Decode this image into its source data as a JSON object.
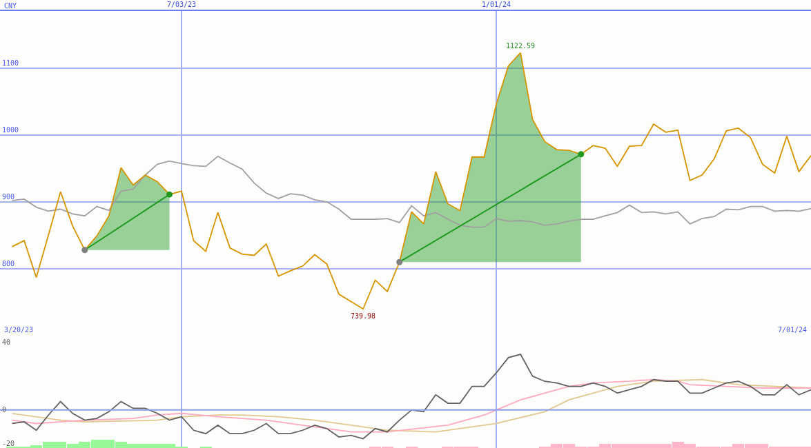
{
  "chart_data": [
    {
      "type": "line",
      "ylabel": "CNY",
      "x": [
        "2023-03-27",
        "2023-04-03",
        "2023-04-10",
        "2023-04-17",
        "2023-04-24",
        "2023-05-01",
        "2023-05-08",
        "2023-05-15",
        "2023-05-22",
        "2023-05-29",
        "2023-06-05",
        "2023-06-12",
        "2023-06-19",
        "2023-06-26",
        "2023-07-03",
        "2023-07-10",
        "2023-07-17",
        "2023-07-24",
        "2023-07-31",
        "2023-08-07",
        "2023-08-14",
        "2023-08-21",
        "2023-08-28",
        "2023-09-04",
        "2023-09-11",
        "2023-09-18",
        "2023-09-25",
        "2023-10-02",
        "2023-10-09",
        "2023-10-16",
        "2023-10-23",
        "2023-10-30",
        "2023-11-06",
        "2023-11-13",
        "2023-11-20",
        "2023-11-27",
        "2023-12-04",
        "2023-12-11",
        "2023-12-18",
        "2023-12-25",
        "2024-01-01",
        "2024-01-08",
        "2024-01-15",
        "2024-01-22",
        "2024-01-29",
        "2024-02-05",
        "2024-02-12",
        "2024-02-19",
        "2024-02-26",
        "2024-03-04",
        "2024-03-11",
        "2024-03-18",
        "2024-03-25",
        "2024-04-01",
        "2024-04-08",
        "2024-04-15",
        "2024-04-22",
        "2024-04-29",
        "2024-05-06",
        "2024-05-13",
        "2024-05-20",
        "2024-05-27",
        "2024-06-03",
        "2024-06-10",
        "2024-06-17",
        "2024-06-24",
        "2024-07-01"
      ],
      "series": [
        {
          "color": "#a0a0a0",
          "values": [
            902,
            904,
            892,
            886,
            889,
            882,
            879,
            893,
            887,
            916,
            919,
            940,
            956,
            961,
            957,
            954,
            953,
            968,
            958,
            949,
            928,
            913,
            905,
            912,
            910,
            903,
            900,
            889,
            874,
            874,
            874,
            875,
            869,
            894,
            879,
            884,
            874,
            865,
            862,
            862,
            875,
            871,
            872,
            870,
            865,
            867,
            871,
            874,
            874,
            879,
            884,
            895,
            884,
            885,
            882,
            885,
            867,
            875,
            878,
            889,
            888,
            893,
            893,
            886,
            887,
            886,
            890
          ]
        },
        {
          "color": "#d89400",
          "values": [
            833,
            842,
            787,
            850,
            915,
            864,
            828,
            849,
            879,
            951,
            925,
            940,
            930,
            911,
            916,
            842,
            826,
            884,
            831,
            822,
            820,
            837,
            789,
            797,
            804,
            821,
            807,
            762,
            751,
            739.98,
            783,
            766,
            810,
            885,
            867,
            945,
            897,
            887,
            967,
            967,
            1046,
            1103,
            1122.59,
            1023,
            990,
            978,
            977,
            971,
            984,
            980,
            953,
            983,
            984,
            1016,
            1004,
            1007,
            932,
            940,
            964,
            1006,
            1010,
            996,
            956,
            943,
            998,
            945,
            969
          ]
        },
        {
          "type": "line",
          "color": "#1f9a1f",
          "marker": "circle",
          "x": [
            "2023-05-08",
            "2023-05-15",
            "2023-05-22",
            "2023-05-29",
            "2023-06-05",
            "2023-06-12",
            "2023-06-19",
            "2023-06-26"
          ],
          "values": [
            828,
            null,
            null,
            null,
            null,
            null,
            null,
            911
          ],
          "colors": [
            "#808080",
            null,
            null,
            null,
            null,
            null,
            null,
            "#1f9a1f"
          ],
          "lower": [
            828,
            828,
            828,
            828,
            828,
            828,
            828,
            828
          ],
          "upper": [
            828,
            849,
            879,
            951,
            925,
            940,
            930,
            911
          ]
        },
        {
          "type": "line",
          "color": "#1f9a1f",
          "marker": "circle",
          "x": [
            "2023-11-06",
            "2023-11-13",
            "2023-11-20",
            "2023-11-27",
            "2023-12-04",
            "2023-12-11",
            "2023-12-18",
            "2023-12-25",
            "2024-01-01",
            "2024-01-08",
            "2024-01-15",
            "2024-01-22",
            "2024-01-29",
            "2024-02-05",
            "2024-02-12",
            "2024-02-19"
          ],
          "values": [
            810,
            null,
            null,
            null,
            null,
            null,
            null,
            null,
            null,
            null,
            null,
            null,
            null,
            null,
            null,
            971
          ],
          "colors": [
            "#808080",
            null,
            null,
            null,
            null,
            null,
            null,
            null,
            null,
            null,
            null,
            null,
            null,
            null,
            null,
            "#1f9a1f"
          ],
          "lower": [
            810,
            810,
            810,
            810,
            810,
            810,
            810,
            810,
            810,
            810,
            810,
            810,
            810,
            810,
            810,
            810
          ],
          "upper": [
            810,
            885,
            867,
            945,
            897,
            887,
            967,
            967,
            1046,
            1103,
            1122.59,
            1023,
            990,
            978,
            977,
            971
          ]
        }
      ],
      "xlim": [
        "2023-03-20",
        "2024-07-01"
      ],
      "xticks": [
        {
          "value": "2023-07-03",
          "label": "7/03/23"
        },
        {
          "value": "2024-01-01",
          "label": "1/01/24"
        }
      ],
      "ylim": [
        700,
        1185
      ],
      "yticks": [
        800,
        900,
        1000,
        1100
      ],
      "grid": true,
      "annotations": [
        "3/20/23",
        "7/01/24",
        {
          "text": "1122.59",
          "x": "2024-01-15",
          "y": 1122.59
        },
        {
          "text": "739.98",
          "x": "2023-10-16",
          "y": 739.98
        }
      ]
    },
    {
      "type": "line",
      "x": [
        "2023-03-27",
        "2023-04-03",
        "2023-04-10",
        "2023-04-17",
        "2023-04-24",
        "2023-05-01",
        "2023-05-08",
        "2023-05-15",
        "2023-05-22",
        "2023-05-29",
        "2023-06-05",
        "2023-06-12",
        "2023-06-19",
        "2023-06-26",
        "2023-07-03",
        "2023-07-10",
        "2023-07-17",
        "2023-07-24",
        "2023-07-31",
        "2023-08-07",
        "2023-08-14",
        "2023-08-21",
        "2023-08-28",
        "2023-09-04",
        "2023-09-11",
        "2023-09-18",
        "2023-09-25",
        "2023-10-02",
        "2023-10-09",
        "2023-10-16",
        "2023-10-23",
        "2023-10-30",
        "2023-11-06",
        "2023-11-13",
        "2023-11-20",
        "2023-11-27",
        "2023-12-04",
        "2023-12-11",
        "2023-12-18",
        "2023-12-25",
        "2024-01-01",
        "2024-01-08",
        "2024-01-15",
        "2024-01-22",
        "2024-01-29",
        "2024-02-05",
        "2024-02-12",
        "2024-02-19",
        "2024-02-26",
        "2024-03-04",
        "2024-03-11",
        "2024-03-18",
        "2024-03-25",
        "2024-04-01",
        "2024-04-08",
        "2024-04-15",
        "2024-04-22",
        "2024-04-29",
        "2024-05-06",
        "2024-05-13",
        "2024-05-20",
        "2024-05-27",
        "2024-06-03",
        "2024-06-10",
        "2024-06-17",
        "2024-06-24",
        "2024-07-01"
      ],
      "series": [
        {
          "type": "bar",
          "color": "#98f898",
          "x": [
            "2023-03-27",
            "2023-04-03",
            "2023-04-10",
            "2023-04-17",
            "2023-04-24",
            "2023-05-01",
            "2023-05-08",
            "2023-05-15",
            "2023-05-22",
            "2023-05-29",
            "2023-06-05",
            "2023-06-12",
            "2023-06-19",
            "2023-06-26",
            "2023-07-03",
            "2023-07-17"
          ],
          "values": [
            0.9,
            0.9,
            1.7,
            3.5,
            3.5,
            2.3,
            3.5,
            4.7,
            4.7,
            3.5,
            2.3,
            2.3,
            2.3,
            2.3,
            0.9,
            0.9
          ],
          "base": [
            -22.5,
            -22.5,
            -22.5,
            -22.5,
            -22.5,
            -22.5,
            -22.5,
            -22.5,
            -22.5,
            -22.5,
            -22.5,
            -22.5,
            -22.5,
            -22.5,
            -22.5,
            -22.5
          ]
        },
        {
          "type": "bar",
          "color": "#ffb4c8",
          "x": [
            "2023-10-23",
            "2023-10-30",
            "2023-11-13",
            "2023-12-04",
            "2023-12-11",
            "2023-12-18",
            "2024-01-29",
            "2024-02-05",
            "2024-02-12",
            "2024-02-19",
            "2024-02-26",
            "2024-03-04",
            "2024-03-11",
            "2024-03-18",
            "2024-03-25",
            "2024-04-01",
            "2024-04-08",
            "2024-04-15",
            "2024-04-22",
            "2024-04-29",
            "2024-05-06",
            "2024-05-13",
            "2024-05-20",
            "2024-05-27",
            "2024-06-03",
            "2024-06-10",
            "2024-06-17",
            "2024-06-24",
            "2024-07-01"
          ],
          "values": [
            0.9,
            0.9,
            0.9,
            0.9,
            0.9,
            0.9,
            0.9,
            2.3,
            2.3,
            0.9,
            0.9,
            2.3,
            2.3,
            2.3,
            2.3,
            2.3,
            2.3,
            3.5,
            2.3,
            0.9,
            0.9,
            0.9,
            2.3,
            2.3,
            2.3,
            0.9,
            0.9,
            0.9,
            0.9
          ],
          "base": [
            -22.5,
            -22.5,
            -22.5,
            -22.5,
            -22.5,
            -22.5,
            -22.5,
            -22.5,
            -22.5,
            -22.5,
            -22.5,
            -22.5,
            -22.5,
            -22.5,
            -22.5,
            -22.5,
            -22.5,
            -22.5,
            -22.5,
            -22.5,
            -22.5,
            -22.5,
            -22.5,
            -22.5,
            -22.5,
            -22.5,
            -22.5,
            -22.5,
            -22.5
          ]
        },
        {
          "type": "line",
          "color": "#e0c890",
          "x": [
            "2023-03-27",
            "2023-04-24",
            "2023-05-08",
            "2023-06-19",
            "2023-07-03",
            "2023-07-24",
            "2023-08-07",
            "2023-08-28",
            "2023-09-18",
            "2023-10-09",
            "2023-10-30",
            "2023-11-27",
            "2024-01-01",
            "2024-01-29",
            "2024-02-12",
            "2024-03-11",
            "2024-04-01",
            "2024-04-29",
            "2024-05-20",
            "2024-07-01"
          ],
          "values": [
            -2,
            -6,
            -7,
            -6,
            -4,
            -3,
            -3,
            -4,
            -6,
            -9,
            -12,
            -13,
            -8,
            -1,
            6,
            14,
            17,
            18,
            15,
            13
          ]
        },
        {
          "type": "line",
          "color": "#ffa8c0",
          "x": [
            "2023-03-27",
            "2023-04-10",
            "2023-05-08",
            "2023-06-05",
            "2023-06-19",
            "2023-07-03",
            "2023-07-24",
            "2023-08-21",
            "2023-09-18",
            "2023-10-09",
            "2023-10-30",
            "2023-12-04",
            "2023-12-25",
            "2024-01-01",
            "2024-01-15",
            "2024-01-29",
            "2024-02-12",
            "2024-02-26",
            "2024-03-18",
            "2024-04-01",
            "2024-04-15",
            "2024-04-22",
            "2024-05-13",
            "2024-06-03",
            "2024-07-01"
          ],
          "values": [
            -6,
            -8,
            -6,
            -5,
            -3,
            -2,
            -4,
            -6,
            -10,
            -13,
            -13,
            -9,
            -3,
            0,
            6,
            10,
            14,
            16,
            17,
            18,
            17,
            15,
            14,
            13,
            13
          ]
        },
        {
          "color": "#606060",
          "values": [
            -8,
            -7,
            -12,
            -3,
            5,
            -2,
            -6,
            -5,
            -1,
            5,
            1,
            1,
            -2,
            -6,
            -4,
            -12,
            -14,
            -9,
            -14,
            -14,
            -12,
            -8,
            -14,
            -14,
            -12,
            -9,
            -11,
            -16,
            -15,
            -17,
            -11,
            -13,
            -6,
            0,
            -1,
            9,
            4,
            4,
            14,
            14,
            22,
            31,
            33,
            20,
            17,
            16,
            14,
            14,
            16,
            14,
            10,
            12,
            14,
            18,
            17,
            17,
            10,
            10,
            13,
            16,
            17,
            14,
            9,
            9,
            15,
            9,
            12
          ]
        }
      ],
      "xlim": [
        "2023-03-20",
        "2024-07-01"
      ],
      "xticks": [
        {
          "value": "2023-07-03",
          "label": null
        },
        {
          "value": "2024-01-01",
          "label": null
        }
      ],
      "ylim": [
        -22.5,
        44
      ],
      "yticks": [
        40,
        0,
        -20
      ],
      "grid": "x",
      "tick_labels": "y",
      "ref_lines": [
        {
          "axis": "y",
          "value": 0,
          "color": "#8a9cf0"
        }
      ]
    }
  ]
}
